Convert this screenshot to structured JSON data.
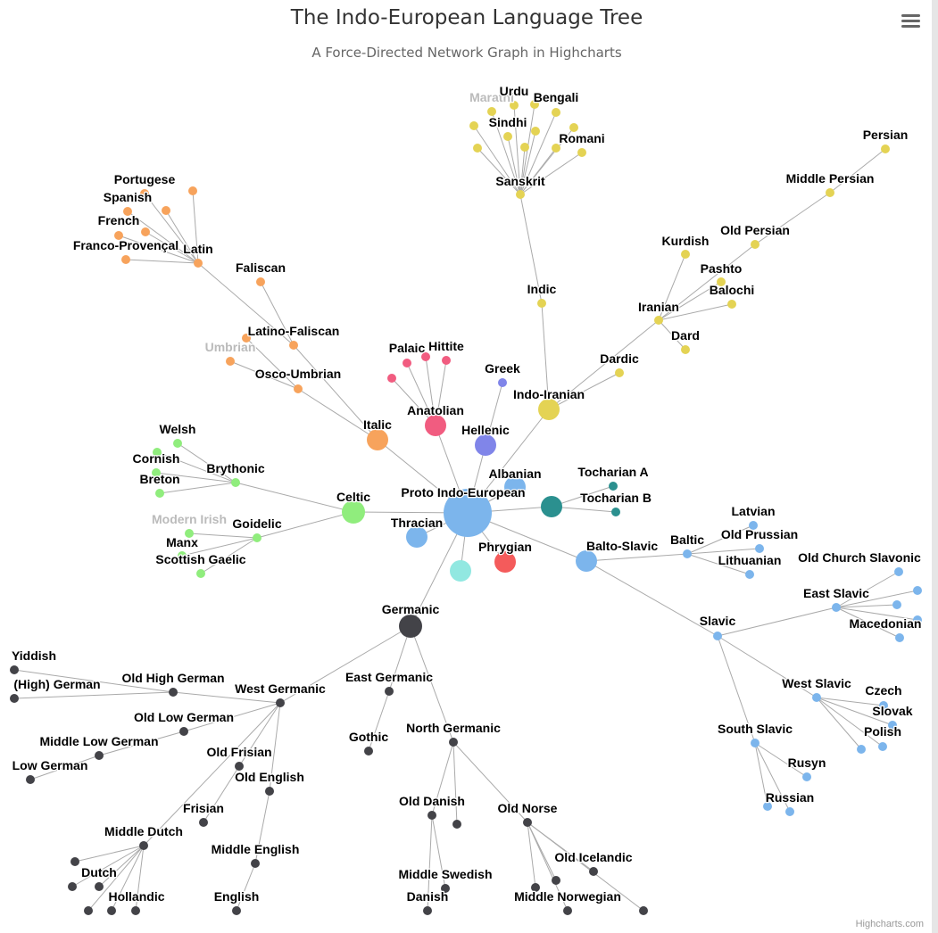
{
  "header": {
    "title": "The Indo-European Language Tree",
    "subtitle": "A Force-Directed Network Graph in Highcharts",
    "menu_icon": "hamburger-menu-icon"
  },
  "credits": "Highcharts.com",
  "colors": {
    "indo_iranian": "#e4d354",
    "celtic": "#90ed7d",
    "italic": "#f7a35c",
    "anatolian": "#f15c80",
    "hellenic": "#8085e9",
    "balto_slavic": "#7cb5ec",
    "germanic": "#434348",
    "tocharian": "#2b908f",
    "phrygian": "#f45b5b",
    "albanian": "#7cb5ec",
    "thracian": "#7cb5ec",
    "unlabeled_branch": "#91e8e1",
    "link": "#aaaaaa"
  },
  "chart_data": {
    "type": "network",
    "root": "Proto Indo-European",
    "edges": [
      [
        "Proto Indo-European",
        "Balto-Slavic"
      ],
      [
        "Proto Indo-European",
        "Germanic"
      ],
      [
        "Proto Indo-European",
        "Celtic"
      ],
      [
        "Proto Indo-European",
        "Italic"
      ],
      [
        "Proto Indo-European",
        "Hellenic"
      ],
      [
        "Proto Indo-European",
        "Anatolian"
      ],
      [
        "Proto Indo-European",
        "Indo-Iranian"
      ],
      [
        "Proto Indo-European",
        "Tocharian"
      ],
      [
        "Proto Indo-European",
        "Albanian"
      ],
      [
        "Proto Indo-European",
        "Thracian"
      ],
      [
        "Proto Indo-European",
        "Phrygian"
      ],
      [
        "Proto Indo-European",
        "Unlabeled branch"
      ],
      [
        "Indo-Iranian",
        "Dardic"
      ],
      [
        "Indo-Iranian",
        "Indic"
      ],
      [
        "Indo-Iranian",
        "Iranian"
      ],
      [
        "Iranian",
        "Old Persian"
      ],
      [
        "Old Persian",
        "Middle Persian"
      ],
      [
        "Middle Persian",
        "Persian"
      ],
      [
        "Iranian",
        "Pashto"
      ],
      [
        "Iranian",
        "Balochi"
      ],
      [
        "Iranian",
        "Kurdish"
      ],
      [
        "Iranian",
        "Dard"
      ],
      [
        "Indic",
        "Sanskrit"
      ],
      [
        "Sanskrit",
        "Marathi"
      ],
      [
        "Sanskrit",
        "Urdu"
      ],
      [
        "Sanskrit",
        "Bengali"
      ],
      [
        "Sanskrit",
        "Sindhi"
      ],
      [
        "Sanskrit",
        "Romani"
      ],
      [
        "Sanskrit",
        "Sanskrit child 1"
      ],
      [
        "Sanskrit",
        "Sanskrit child 2"
      ],
      [
        "Sanskrit",
        "Sanskrit child 3"
      ],
      [
        "Sanskrit",
        "Sanskrit child 4"
      ],
      [
        "Sanskrit",
        "Sanskrit child 5"
      ],
      [
        "Sanskrit",
        "Sanskrit child 6"
      ],
      [
        "Sanskrit",
        "Sanskrit child 7"
      ],
      [
        "Celtic",
        "Goidelic"
      ],
      [
        "Goidelic",
        "Modern Irish"
      ],
      [
        "Goidelic",
        "Manx"
      ],
      [
        "Goidelic",
        "Scottish Gaelic"
      ],
      [
        "Celtic",
        "Brythonic"
      ],
      [
        "Brythonic",
        "Welsh"
      ],
      [
        "Brythonic",
        "Cornish"
      ],
      [
        "Brythonic",
        "Breton"
      ],
      [
        "Brythonic",
        "Brythonic child"
      ],
      [
        "Italic",
        "Osco-Umbrian"
      ],
      [
        "Osco-Umbrian",
        "Umbrian"
      ],
      [
        "Osco-Umbrian",
        "Oscan"
      ],
      [
        "Italic",
        "Latino-Faliscan"
      ],
      [
        "Latino-Faliscan",
        "Faliscan"
      ],
      [
        "Latino-Faliscan",
        "Latin"
      ],
      [
        "Latin",
        "Portugese"
      ],
      [
        "Latin",
        "Spanish"
      ],
      [
        "Latin",
        "French"
      ],
      [
        "Latin",
        "Franco-Provençal"
      ],
      [
        "Latin",
        "Latin child 1"
      ],
      [
        "Latin",
        "Latin child 2"
      ],
      [
        "Latin",
        "Latin child 3"
      ],
      [
        "Anatolian",
        "Hittite"
      ],
      [
        "Anatolian",
        "Palaic"
      ],
      [
        "Anatolian",
        "Anatolian child 1"
      ],
      [
        "Anatolian",
        "Anatolian child 2"
      ],
      [
        "Hellenic",
        "Greek"
      ],
      [
        "Tocharian",
        "Tocharian A"
      ],
      [
        "Tocharian",
        "Tocharian B"
      ],
      [
        "Balto-Slavic",
        "Baltic"
      ],
      [
        "Baltic",
        "Old Prussian"
      ],
      [
        "Baltic",
        "Lithuanian"
      ],
      [
        "Baltic",
        "Latvian"
      ],
      [
        "Balto-Slavic",
        "Slavic"
      ],
      [
        "Slavic",
        "East Slavic"
      ],
      [
        "East Slavic",
        "Old Church Slavonic"
      ],
      [
        "East Slavic",
        "Macedonian"
      ],
      [
        "East Slavic",
        "East Slavic child 1"
      ],
      [
        "East Slavic",
        "East Slavic child 2"
      ],
      [
        "East Slavic",
        "East Slavic child 3"
      ],
      [
        "Slavic",
        "West Slavic"
      ],
      [
        "West Slavic",
        "Czech"
      ],
      [
        "West Slavic",
        "Slovak"
      ],
      [
        "West Slavic",
        "Polish"
      ],
      [
        "West Slavic",
        "West Slavic child"
      ],
      [
        "Slavic",
        "South Slavic"
      ],
      [
        "South Slavic",
        "Rusyn"
      ],
      [
        "South Slavic",
        "Russian"
      ],
      [
        "South Slavic",
        "South Slavic child"
      ],
      [
        "Germanic",
        "North Germanic"
      ],
      [
        "North Germanic",
        "Old Norse"
      ],
      [
        "Old Norse",
        "Old Icelandic"
      ],
      [
        "Old Norse",
        "Middle Norwegian"
      ],
      [
        "Old Norse",
        "Old Norse child 1"
      ],
      [
        "Old Norse",
        "Old Norse child 2"
      ],
      [
        "Old Norse",
        "Old Norse child 3"
      ],
      [
        "North Germanic",
        "Old Danish"
      ],
      [
        "Old Danish",
        "Middle Swedish"
      ],
      [
        "Old Danish",
        "Danish"
      ],
      [
        "North Germanic",
        "North Germanic child"
      ],
      [
        "Germanic",
        "West Germanic"
      ],
      [
        "West Germanic",
        "Old English"
      ],
      [
        "Old English",
        "Middle English"
      ],
      [
        "Middle English",
        "English"
      ],
      [
        "West Germanic",
        "Old Frisian"
      ],
      [
        "Old Frisian",
        "Frisian"
      ],
      [
        "West Germanic",
        "Old Low German"
      ],
      [
        "Old Low German",
        "Middle Low German"
      ],
      [
        "Middle Low German",
        "Low German"
      ],
      [
        "West Germanic",
        "Middle Dutch"
      ],
      [
        "Middle Dutch",
        "Hollandic"
      ],
      [
        "Middle Dutch",
        "Dutch"
      ],
      [
        "Middle Dutch",
        "Middle Dutch child 1"
      ],
      [
        "Middle Dutch",
        "Middle Dutch child 2"
      ],
      [
        "Middle Dutch",
        "Middle Dutch child 3"
      ],
      [
        "Middle Dutch",
        "Middle Dutch child 4"
      ],
      [
        "West Germanic",
        "Old High German"
      ],
      [
        "Old High German",
        "(High) German"
      ],
      [
        "Old High German",
        "Yiddish"
      ],
      [
        "Germanic",
        "East Germanic"
      ],
      [
        "East Germanic",
        "Gothic"
      ]
    ],
    "nodes": [
      {
        "id": "Proto Indo-European",
        "label": "Proto Indo-European",
        "color": "#7cb5ec"
      },
      {
        "id": "Balto-Slavic",
        "label": "Balto-Slavic",
        "color": "#7cb5ec"
      },
      {
        "id": "Germanic",
        "label": "Germanic",
        "color": "#434348"
      },
      {
        "id": "Celtic",
        "label": "Celtic",
        "color": "#90ed7d"
      },
      {
        "id": "Italic",
        "label": "Italic",
        "color": "#f7a35c"
      },
      {
        "id": "Hellenic",
        "label": "Hellenic",
        "color": "#8085e9"
      },
      {
        "id": "Anatolian",
        "label": "Anatolian",
        "color": "#f15c80"
      },
      {
        "id": "Indo-Iranian",
        "label": "Indo-Iranian",
        "color": "#e4d354"
      },
      {
        "id": "Tocharian",
        "label": "",
        "color": "#2b908f"
      },
      {
        "id": "Albanian",
        "label": "Albanian",
        "color": "#7cb5ec"
      },
      {
        "id": "Thracian",
        "label": "Thracian",
        "color": "#7cb5ec"
      },
      {
        "id": "Phrygian",
        "label": "Phrygian",
        "color": "#f45b5b"
      },
      {
        "id": "Unlabeled branch",
        "label": "",
        "color": "#91e8e1"
      },
      {
        "id": "Dardic",
        "label": "Dardic",
        "color": "#e4d354"
      },
      {
        "id": "Indic",
        "label": "Indic",
        "color": "#e4d354"
      },
      {
        "id": "Iranian",
        "label": "Iranian",
        "color": "#e4d354"
      },
      {
        "id": "Old Persian",
        "label": "Old Persian",
        "color": "#e4d354"
      },
      {
        "id": "Middle Persian",
        "label": "Middle Persian",
        "color": "#e4d354"
      },
      {
        "id": "Persian",
        "label": "Persian",
        "color": "#e4d354"
      },
      {
        "id": "Pashto",
        "label": "Pashto",
        "color": "#e4d354"
      },
      {
        "id": "Balochi",
        "label": "Balochi",
        "color": "#e4d354"
      },
      {
        "id": "Kurdish",
        "label": "Kurdish",
        "color": "#e4d354"
      },
      {
        "id": "Dard",
        "label": "Dard",
        "color": "#e4d354"
      },
      {
        "id": "Sanskrit",
        "label": "Sanskrit",
        "color": "#e4d354"
      },
      {
        "id": "Marathi",
        "label": "Marathi",
        "color": "#e4d354",
        "faded": true
      },
      {
        "id": "Urdu",
        "label": "Urdu",
        "color": "#e4d354"
      },
      {
        "id": "Bengali",
        "label": "Bengali",
        "color": "#e4d354"
      },
      {
        "id": "Sindhi",
        "label": "Sindhi",
        "color": "#e4d354"
      },
      {
        "id": "Romani",
        "label": "Romani",
        "color": "#e4d354"
      },
      {
        "id": "Sanskrit child 1",
        "label": "",
        "color": "#e4d354"
      },
      {
        "id": "Sanskrit child 2",
        "label": "",
        "color": "#e4d354"
      },
      {
        "id": "Sanskrit child 3",
        "label": "",
        "color": "#e4d354"
      },
      {
        "id": "Sanskrit child 4",
        "label": "",
        "color": "#e4d354"
      },
      {
        "id": "Sanskrit child 5",
        "label": "",
        "color": "#e4d354"
      },
      {
        "id": "Sanskrit child 6",
        "label": "",
        "color": "#e4d354"
      },
      {
        "id": "Sanskrit child 7",
        "label": "",
        "color": "#e4d354"
      },
      {
        "id": "Goidelic",
        "label": "Goidelic",
        "color": "#90ed7d"
      },
      {
        "id": "Modern Irish",
        "label": "Modern Irish",
        "color": "#90ed7d",
        "faded": true
      },
      {
        "id": "Manx",
        "label": "Manx",
        "color": "#90ed7d"
      },
      {
        "id": "Scottish Gaelic",
        "label": "Scottish Gaelic",
        "color": "#90ed7d"
      },
      {
        "id": "Brythonic",
        "label": "Brythonic",
        "color": "#90ed7d"
      },
      {
        "id": "Welsh",
        "label": "Welsh",
        "color": "#90ed7d"
      },
      {
        "id": "Cornish",
        "label": "Cornish",
        "color": "#90ed7d"
      },
      {
        "id": "Breton",
        "label": "Breton",
        "color": "#90ed7d"
      },
      {
        "id": "Brythonic child",
        "label": "",
        "color": "#90ed7d"
      },
      {
        "id": "Osco-Umbrian",
        "label": "Osco-Umbrian",
        "color": "#f7a35c"
      },
      {
        "id": "Umbrian",
        "label": "Umbrian",
        "color": "#f7a35c",
        "faded": true
      },
      {
        "id": "Oscan",
        "label": "",
        "color": "#f7a35c"
      },
      {
        "id": "Latino-Faliscan",
        "label": "Latino-Faliscan",
        "color": "#f7a35c"
      },
      {
        "id": "Faliscan",
        "label": "Faliscan",
        "color": "#f7a35c"
      },
      {
        "id": "Latin",
        "label": "Latin",
        "color": "#f7a35c"
      },
      {
        "id": "Portugese",
        "label": "Portugese",
        "color": "#f7a35c"
      },
      {
        "id": "Spanish",
        "label": "Spanish",
        "color": "#f7a35c"
      },
      {
        "id": "French",
        "label": "French",
        "color": "#f7a35c"
      },
      {
        "id": "Franco-Provençal",
        "label": "Franco-Provençal",
        "color": "#f7a35c"
      },
      {
        "id": "Latin child 1",
        "label": "",
        "color": "#f7a35c"
      },
      {
        "id": "Latin child 2",
        "label": "",
        "color": "#f7a35c"
      },
      {
        "id": "Latin child 3",
        "label": "",
        "color": "#f7a35c"
      },
      {
        "id": "Hittite",
        "label": "Hittite",
        "color": "#f15c80"
      },
      {
        "id": "Palaic",
        "label": "Palaic",
        "color": "#f15c80"
      },
      {
        "id": "Anatolian child 1",
        "label": "",
        "color": "#f15c80"
      },
      {
        "id": "Anatolian child 2",
        "label": "",
        "color": "#f15c80"
      },
      {
        "id": "Greek",
        "label": "Greek",
        "color": "#8085e9"
      },
      {
        "id": "Tocharian A",
        "label": "Tocharian A",
        "color": "#2b908f"
      },
      {
        "id": "Tocharian B",
        "label": "Tocharian B",
        "color": "#2b908f"
      },
      {
        "id": "Baltic",
        "label": "Baltic",
        "color": "#7cb5ec"
      },
      {
        "id": "Old Prussian",
        "label": "Old Prussian",
        "color": "#7cb5ec"
      },
      {
        "id": "Lithuanian",
        "label": "Lithuanian",
        "color": "#7cb5ec"
      },
      {
        "id": "Latvian",
        "label": "Latvian",
        "color": "#7cb5ec"
      },
      {
        "id": "Slavic",
        "label": "Slavic",
        "color": "#7cb5ec"
      },
      {
        "id": "East Slavic",
        "label": "East Slavic",
        "color": "#7cb5ec"
      },
      {
        "id": "Old Church Slavonic",
        "label": "Old Church Slavonic",
        "color": "#7cb5ec"
      },
      {
        "id": "Macedonian",
        "label": "Macedonian",
        "color": "#7cb5ec"
      },
      {
        "id": "East Slavic child 1",
        "label": "",
        "color": "#7cb5ec"
      },
      {
        "id": "East Slavic child 2",
        "label": "",
        "color": "#7cb5ec"
      },
      {
        "id": "East Slavic child 3",
        "label": "",
        "color": "#7cb5ec"
      },
      {
        "id": "West Slavic",
        "label": "West Slavic",
        "color": "#7cb5ec"
      },
      {
        "id": "Czech",
        "label": "Czech",
        "color": "#7cb5ec"
      },
      {
        "id": "Slovak",
        "label": "Slovak",
        "color": "#7cb5ec"
      },
      {
        "id": "Polish",
        "label": "Polish",
        "color": "#7cb5ec"
      },
      {
        "id": "West Slavic child",
        "label": "",
        "color": "#7cb5ec"
      },
      {
        "id": "South Slavic",
        "label": "South Slavic",
        "color": "#7cb5ec"
      },
      {
        "id": "Rusyn",
        "label": "Rusyn",
        "color": "#7cb5ec"
      },
      {
        "id": "Russian",
        "label": "Russian",
        "color": "#7cb5ec"
      },
      {
        "id": "South Slavic child",
        "label": "",
        "color": "#7cb5ec"
      },
      {
        "id": "North Germanic",
        "label": "North Germanic",
        "color": "#434348"
      },
      {
        "id": "Old Norse",
        "label": "Old Norse",
        "color": "#434348"
      },
      {
        "id": "Old Icelandic",
        "label": "Old Icelandic",
        "color": "#434348"
      },
      {
        "id": "Middle Norwegian",
        "label": "Middle Norwegian",
        "color": "#434348"
      },
      {
        "id": "Old Norse child 1",
        "label": "",
        "color": "#434348"
      },
      {
        "id": "Old Norse child 2",
        "label": "",
        "color": "#434348"
      },
      {
        "id": "Old Norse child 3",
        "label": "",
        "color": "#434348"
      },
      {
        "id": "Old Danish",
        "label": "Old Danish",
        "color": "#434348"
      },
      {
        "id": "Middle Swedish",
        "label": "Middle Swedish",
        "color": "#434348"
      },
      {
        "id": "Danish",
        "label": "Danish",
        "color": "#434348"
      },
      {
        "id": "North Germanic child",
        "label": "",
        "color": "#434348"
      },
      {
        "id": "West Germanic",
        "label": "West Germanic",
        "color": "#434348"
      },
      {
        "id": "Old English",
        "label": "Old English",
        "color": "#434348"
      },
      {
        "id": "Middle English",
        "label": "Middle English",
        "color": "#434348"
      },
      {
        "id": "English",
        "label": "English",
        "color": "#434348"
      },
      {
        "id": "Old Frisian",
        "label": "Old Frisian",
        "color": "#434348"
      },
      {
        "id": "Frisian",
        "label": "Frisian",
        "color": "#434348"
      },
      {
        "id": "Old Low German",
        "label": "Old Low German",
        "color": "#434348"
      },
      {
        "id": "Middle Low German",
        "label": "Middle Low German",
        "color": "#434348"
      },
      {
        "id": "Low German",
        "label": "Low German",
        "color": "#434348"
      },
      {
        "id": "Middle Dutch",
        "label": "Middle Dutch",
        "color": "#434348"
      },
      {
        "id": "Hollandic",
        "label": "Hollandic",
        "color": "#434348"
      },
      {
        "id": "Dutch",
        "label": "Dutch",
        "color": "#434348"
      },
      {
        "id": "Middle Dutch child 1",
        "label": "",
        "color": "#434348"
      },
      {
        "id": "Middle Dutch child 2",
        "label": "",
        "color": "#434348"
      },
      {
        "id": "Middle Dutch child 3",
        "label": "",
        "color": "#434348"
      },
      {
        "id": "Middle Dutch child 4",
        "label": "",
        "color": "#434348"
      },
      {
        "id": "Old High German",
        "label": "Old High German",
        "color": "#434348"
      },
      {
        "id": "(High) German",
        "label": "(High) German",
        "color": "#434348"
      },
      {
        "id": "Yiddish",
        "label": "Yiddish",
        "color": "#434348"
      },
      {
        "id": "East Germanic",
        "label": "East Germanic",
        "color": "#434348"
      },
      {
        "id": "Gothic",
        "label": "Gothic",
        "color": "#434348"
      }
    ]
  }
}
